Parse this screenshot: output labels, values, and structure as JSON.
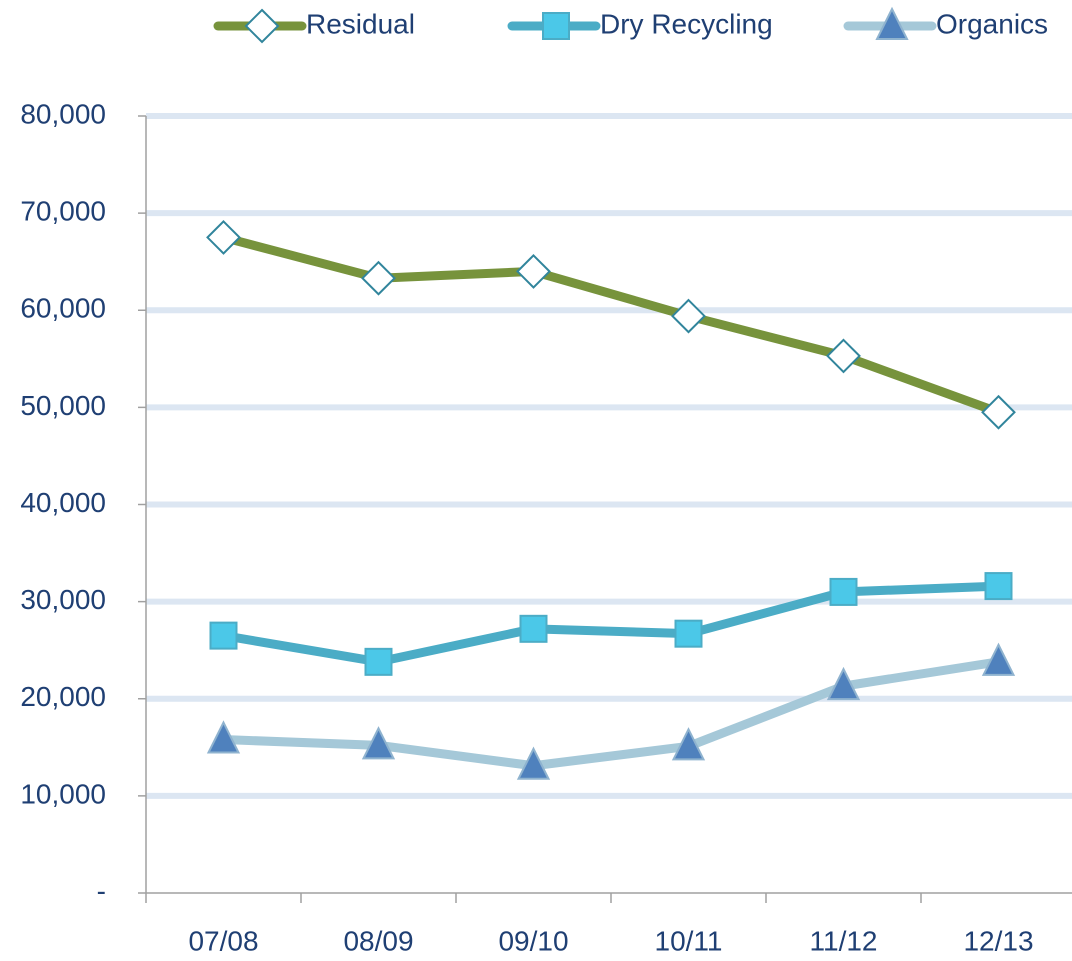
{
  "chart_data": {
    "type": "line",
    "categories": [
      "07/08",
      "08/09",
      "09/10",
      "10/11",
      "11/12",
      "12/13"
    ],
    "series": [
      {
        "name": "Residual",
        "color": "#77933c",
        "marker": "diamond",
        "marker_color": "#ffffff",
        "values": [
          67500,
          63300,
          64000,
          59400,
          55300,
          49500
        ]
      },
      {
        "name": "Dry Recycling",
        "color": "#4bacc6",
        "marker": "square",
        "marker_color": "#4bc8e8",
        "values": [
          26500,
          23800,
          27200,
          26700,
          31000,
          31600
        ]
      },
      {
        "name": "Organics",
        "color": "#a5c8d8",
        "marker": "triangle",
        "marker_color": "#4f81bd",
        "values": [
          15800,
          15200,
          13100,
          15100,
          21300,
          23800
        ]
      }
    ],
    "ylim": [
      0,
      80000
    ],
    "yticks": [
      {
        "value": 0,
        "label": "-"
      },
      {
        "value": 10000,
        "label": "10,000"
      },
      {
        "value": 20000,
        "label": "20,000"
      },
      {
        "value": 30000,
        "label": "30,000"
      },
      {
        "value": 40000,
        "label": "40,000"
      },
      {
        "value": 50000,
        "label": "50,000"
      },
      {
        "value": 60000,
        "label": "60,000"
      },
      {
        "value": 70000,
        "label": "70,000"
      },
      {
        "value": 80000,
        "label": "80,000"
      }
    ],
    "grid": true,
    "legend": "top"
  }
}
